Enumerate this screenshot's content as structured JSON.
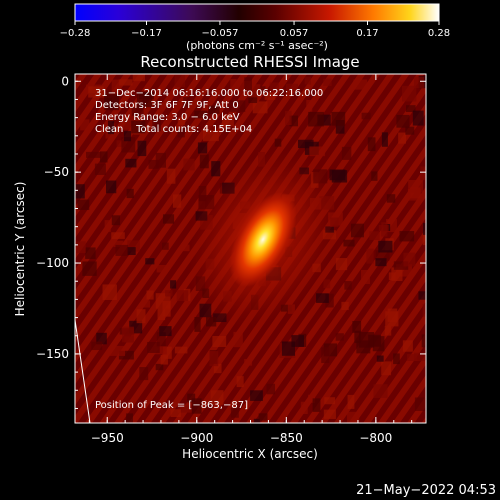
{
  "chart_data": {
    "type": "heatmap",
    "title": "Reconstructed RHESSI Image",
    "xlabel": "Heliocentric X (arcsec)",
    "ylabel": "Heliocentric Y (arcsec)",
    "xlim": [
      -968,
      -772
    ],
    "ylim": [
      -188,
      4
    ],
    "x_ticks": [
      -950,
      -900,
      -850,
      -800
    ],
    "x_tick_labels": [
      "−950",
      "−900",
      "−850",
      "−800"
    ],
    "y_ticks": [
      0,
      -50,
      -100,
      -150
    ],
    "y_tick_labels": [
      "0",
      "−50",
      "−100",
      "−150"
    ],
    "colorbar": {
      "min": -0.28,
      "max": 0.28,
      "ticks": [
        -0.28,
        -0.17,
        -0.057,
        0.057,
        0.17,
        0.28
      ],
      "tick_labels": [
        "−0.28",
        "−0.17",
        "−0.057",
        "0.057",
        "0.17",
        "0.28"
      ],
      "unit_label": "(photons cm⁻² s⁻¹ asec⁻²)",
      "colormap": "rhessi-blue-red-yellow-white"
    },
    "annotations": [
      "31−Dec−2014 06:16:16.000 to 06:22:16.000",
      "Detectors: 3F 6F 7F 9F, Att 0",
      "Energy Range: 3.0 − 6.0 keV",
      "Clean    Total counts: 4.15E+04"
    ],
    "peak": {
      "x": -863,
      "y": -87,
      "label": "Position of Peak = [−863,−87]"
    },
    "source": {
      "center_x": -863,
      "center_y": -87,
      "peak_value": 0.28,
      "orientation": "elongated"
    },
    "limb_label": "",
    "grid": false
  },
  "footer": {
    "timestamp": "21−May−2022 04:53"
  },
  "colors": {
    "background": "#000000",
    "foreground": "#ffffff"
  }
}
